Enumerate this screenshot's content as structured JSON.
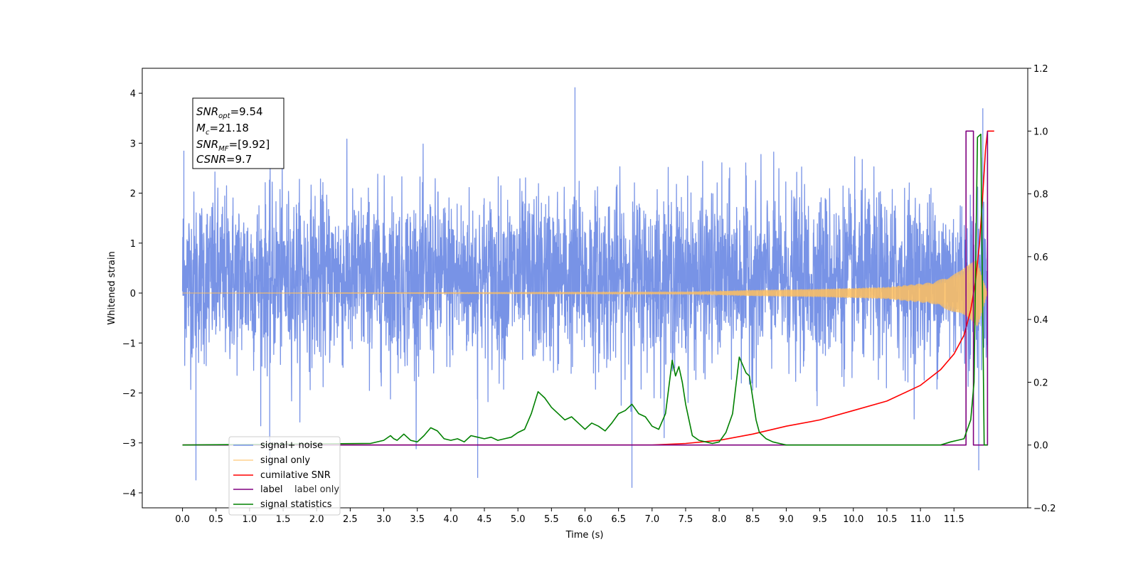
{
  "chart_data": {
    "type": "line",
    "xlabel": "Time (s)",
    "ylabel": "Whitened strain",
    "xlim": [
      -0.6,
      12.6
    ],
    "ylim": [
      -4.3,
      4.5
    ],
    "y2lim": [
      -0.2,
      1.2
    ],
    "x_ticks": [
      "0.0",
      "0.5",
      "1.0",
      "1.5",
      "2.0",
      "2.5",
      "3.0",
      "3.5",
      "4.0",
      "4.5",
      "5.0",
      "5.5",
      "6.0",
      "6.5",
      "7.0",
      "7.5",
      "8.0",
      "8.5",
      "9.0",
      "9.5",
      "10.0",
      "10.5",
      "11.0",
      "11.5"
    ],
    "y_ticks": [
      "−4",
      "−3",
      "−2",
      "−1",
      "0",
      "1",
      "2",
      "3",
      "4"
    ],
    "y2_ticks": [
      "−0.2",
      "0.0",
      "0.2",
      "0.4",
      "0.6",
      "0.8",
      "1.0",
      "1.2"
    ],
    "legend_placement": "lower-left",
    "annotation": {
      "lines": [
        {
          "base": "SNR",
          "sub": "opt",
          "rest": "=9.54"
        },
        {
          "base": "M",
          "sub": "c",
          "rest": "=21.18"
        },
        {
          "base": "SNR",
          "sub": "MF",
          "rest": "=[9.92]"
        },
        {
          "base": "CSNR",
          "sub": "",
          "rest": "=9.7"
        }
      ]
    },
    "noise_summary": {
      "x_start": 0.0,
      "x_end": 12.0,
      "typical_range": [
        -1.8,
        2.4
      ],
      "peaks": [
        [
          0.02,
          2.85
        ],
        [
          0.2,
          -3.75
        ],
        [
          1.3,
          -3.6
        ],
        [
          5.85,
          4.12
        ],
        [
          6.7,
          -3.9
        ],
        [
          4.4,
          -3.7
        ],
        [
          11.93,
          3.7
        ],
        [
          11.87,
          -3.55
        ]
      ]
    },
    "series": [
      {
        "name": "signal+ noise",
        "color": "#7893e6",
        "axis": "left"
      },
      {
        "name": "signal only",
        "color": "#ffbf5e",
        "axis": "left",
        "envelope": {
          "x": [
            0.0,
            7.6,
            8.5,
            9.5,
            10.5,
            11.2,
            11.6,
            11.85,
            12.0
          ],
          "amp": [
            0.0,
            0.02,
            0.06,
            0.08,
            0.12,
            0.22,
            0.45,
            0.7,
            0.0
          ]
        }
      },
      {
        "name": "cumilative SNR",
        "color": "#ff0000",
        "axis": "right",
        "x": [
          0.0,
          7.0,
          7.5,
          8.0,
          8.5,
          9.0,
          9.5,
          10.0,
          10.5,
          11.0,
          11.3,
          11.5,
          11.65,
          11.75,
          11.82,
          11.88,
          11.93,
          11.97,
          12.0,
          12.1
        ],
        "y": [
          0.0,
          0.0,
          0.005,
          0.015,
          0.035,
          0.06,
          0.08,
          0.11,
          0.14,
          0.19,
          0.24,
          0.29,
          0.35,
          0.43,
          0.52,
          0.64,
          0.8,
          0.94,
          1.0,
          1.0
        ]
      },
      {
        "name": "label",
        "color": "#800080",
        "axis": "right",
        "x": [
          0.0,
          11.68,
          11.68,
          11.79,
          11.79,
          12.0,
          12.0
        ],
        "y": [
          0.0,
          0.0,
          1.0,
          1.0,
          0.0,
          0.0,
          1.0
        ]
      },
      {
        "name": "label only",
        "color": "#ffffff",
        "axis": "right",
        "hidden": true
      },
      {
        "name": "signal statistics",
        "color": "#008000",
        "axis": "right",
        "x": [
          0.0,
          2.8,
          3.0,
          3.1,
          3.15,
          3.2,
          3.3,
          3.4,
          3.5,
          3.6,
          3.7,
          3.75,
          3.8,
          3.9,
          4.0,
          4.1,
          4.2,
          4.3,
          4.4,
          4.5,
          4.6,
          4.7,
          4.8,
          4.9,
          5.0,
          5.1,
          5.2,
          5.3,
          5.4,
          5.5,
          5.6,
          5.7,
          5.8,
          5.9,
          6.0,
          6.1,
          6.2,
          6.3,
          6.4,
          6.5,
          6.6,
          6.7,
          6.8,
          6.9,
          7.0,
          7.1,
          7.2,
          7.3,
          7.35,
          7.4,
          7.45,
          7.5,
          7.55,
          7.6,
          7.7,
          7.8,
          7.9,
          8.0,
          8.1,
          8.2,
          8.3,
          8.4,
          8.45,
          8.5,
          8.55,
          8.6,
          8.7,
          8.8,
          8.9,
          9.0,
          9.2,
          11.3,
          11.45,
          11.55,
          11.65,
          11.75,
          11.8,
          11.85,
          11.9,
          11.95,
          12.0
        ],
        "y": [
          0.0,
          0.005,
          0.015,
          0.03,
          0.02,
          0.015,
          0.035,
          0.015,
          0.01,
          0.03,
          0.055,
          0.05,
          0.045,
          0.02,
          0.015,
          0.02,
          0.01,
          0.03,
          0.025,
          0.02,
          0.025,
          0.015,
          0.02,
          0.025,
          0.04,
          0.05,
          0.1,
          0.17,
          0.15,
          0.12,
          0.1,
          0.08,
          0.09,
          0.07,
          0.05,
          0.07,
          0.06,
          0.045,
          0.07,
          0.1,
          0.11,
          0.13,
          0.1,
          0.09,
          0.06,
          0.05,
          0.1,
          0.27,
          0.22,
          0.25,
          0.2,
          0.13,
          0.08,
          0.03,
          0.015,
          0.01,
          0.005,
          0.01,
          0.04,
          0.1,
          0.28,
          0.23,
          0.22,
          0.15,
          0.08,
          0.04,
          0.02,
          0.01,
          0.005,
          0.0,
          0.0,
          0.0,
          0.01,
          0.015,
          0.02,
          0.08,
          0.2,
          0.98,
          0.99,
          0.0,
          0.0
        ]
      }
    ]
  }
}
